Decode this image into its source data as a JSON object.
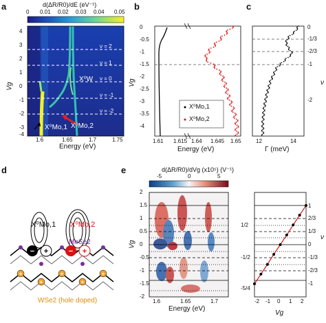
{
  "panels": {
    "a": {
      "letter": "a",
      "colorbar_label": "d(ΔR/R0)/dE (eV⁻¹)",
      "colorbar_ticks": [
        "0",
        "0.01",
        "0.02",
        "0.03",
        "0.04",
        "0.05"
      ],
      "xlabel": "Energy (eV)",
      "ylabel": "Vg",
      "xticks": [
        "1.6",
        "1.65",
        "1.7",
        "1.75"
      ],
      "yticks": [
        "4",
        "3",
        "2",
        "1",
        "0",
        "-1",
        "-2",
        "-3",
        "-4"
      ],
      "nu_labels": [
        "ν = 2",
        "ν = 1",
        "ν = 0",
        "ν = -1",
        "ν = -2"
      ],
      "peak_labels": [
        "X⁰W",
        "X⁰Mo,1",
        "X⁰Mo,2"
      ]
    },
    "b": {
      "letter": "b",
      "ylabel": "Vg",
      "yticks": [
        "0",
        "-0.5",
        "-1",
        "-1.5",
        "-2",
        "-2.5",
        "-3",
        "-3.5",
        "-4"
      ],
      "xticks": [
        "1.61",
        "1.615",
        "1.64",
        "1.645",
        "1.65"
      ],
      "xlabel": "Energy (eV)",
      "legend": [
        "X⁰Mo,1",
        "X⁰Mo,2"
      ]
    },
    "c": {
      "letter": "c",
      "xlabel": "Γ (meV)",
      "xticks": [
        "12",
        "14"
      ],
      "right_label": "ν",
      "nu_ticks": [
        "0",
        "-1/3",
        "-2/3",
        "-1",
        "-2"
      ]
    },
    "d": {
      "letter": "d",
      "labels": [
        "X⁰Mo,1",
        "X⁰Mo,2",
        "MoSe2",
        "WSe2 (hole doped)"
      ]
    },
    "e": {
      "letter": "e",
      "colorbar_label": "d(ΔR/R0)/dVg (x10⁵) (V⁻¹)",
      "colorbar_ticks": [
        "-5",
        "0",
        "5"
      ],
      "xlabel": "Energy (eV)",
      "ylabel": "Vg",
      "xticks": [
        "1.6",
        "1.65",
        "1.7"
      ],
      "yticks": [
        "2",
        "1.5",
        "1",
        "0.5",
        "0",
        "-0.5",
        "-1",
        "-1.5",
        "-2"
      ],
      "mid_ticks": [
        "1/2",
        "-1/2",
        "-5/4"
      ],
      "right_xlabel": "Vg",
      "right_xticks": [
        "-2",
        "-1",
        "0",
        "1",
        "2"
      ],
      "nu_ticks": [
        "1",
        "2/3",
        "1/3",
        "0",
        "-1/3",
        "-2/3",
        "-1"
      ],
      "nu_label": "ν"
    }
  },
  "chart_data": [
    {
      "type": "line",
      "title": "",
      "xlabel": "Energy (eV)",
      "ylabel": "Vg",
      "series": [
        {
          "name": "X⁰Mo,1",
          "x": [
            1.617,
            1.615,
            1.612,
            1.611,
            1.611,
            1.611,
            1.611,
            1.611,
            1.611,
            1.611,
            1.611
          ],
          "y": [
            0,
            -0.2,
            -0.5,
            -0.8,
            -1.1,
            -1.5,
            -2,
            -2.5,
            -3,
            -3.5,
            -4
          ]
        },
        {
          "name": "X⁰Mo,2",
          "x": [
            1.648,
            1.646,
            1.644,
            1.642,
            1.641,
            1.643,
            1.645,
            1.646,
            1.647,
            1.648,
            1.649,
            1.649
          ],
          "y": [
            0,
            -0.3,
            -0.6,
            -0.9,
            -1.2,
            -1.4,
            -1.7,
            -2.1,
            -2.6,
            -3,
            -3.5,
            -4
          ]
        }
      ]
    },
    {
      "type": "line",
      "xlabel": "Γ (meV)",
      "series": [
        {
          "x": [
            14.6,
            14.3,
            13.8,
            13.6,
            13.8,
            14.1,
            13.6,
            12.9,
            12.4,
            12.1,
            11.9,
            11.8,
            11.8
          ],
          "y": [
            0,
            -0.2,
            -0.4,
            -0.6,
            -0.8,
            -1.0,
            -1.2,
            -1.5,
            -2,
            -2.5,
            -3,
            -3.5,
            -4
          ]
        }
      ]
    },
    {
      "type": "line",
      "xlabel": "Vg",
      "xlim": [
        -2,
        2
      ],
      "series": [
        {
          "x": [
            -2,
            -1.5,
            -1,
            -0.5,
            0,
            0.5,
            1,
            1.5,
            2
          ],
          "y": [
            -1.33,
            -1,
            -0.67,
            -0.33,
            0,
            0.33,
            0.67,
            1,
            1.33
          ]
        }
      ]
    }
  ]
}
